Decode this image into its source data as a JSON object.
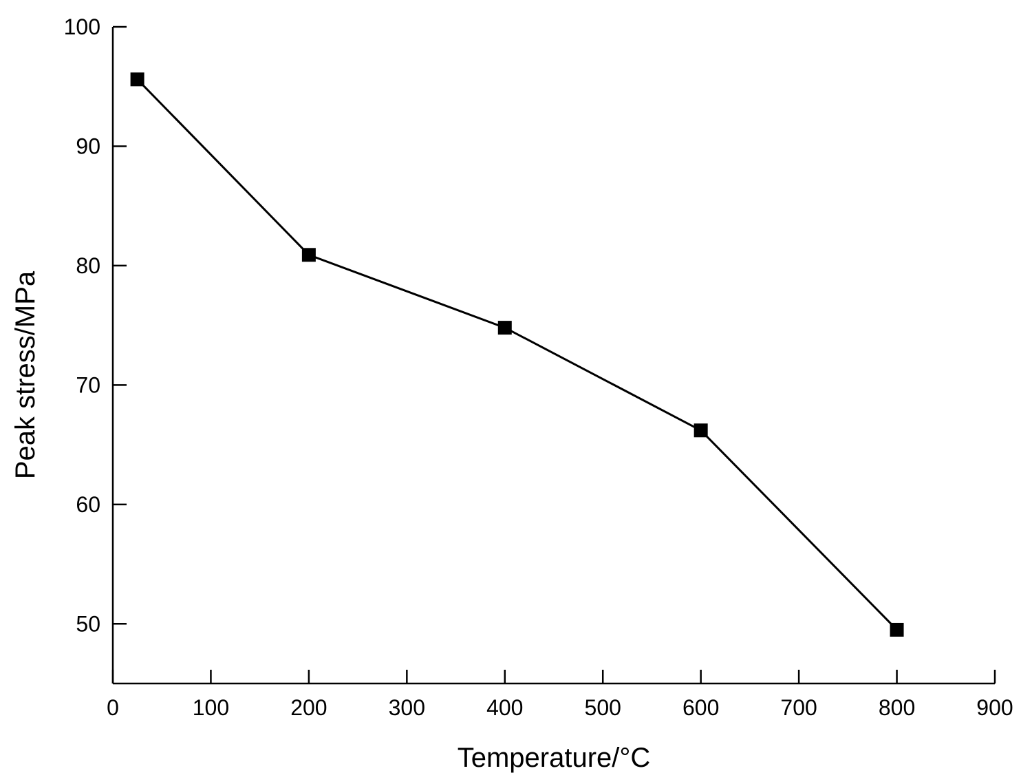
{
  "chart_data": {
    "type": "line",
    "title": "",
    "xlabel": "Temperature/°C",
    "ylabel": "Peak stress/MPa",
    "xlim": [
      0,
      900
    ],
    "ylim": [
      45,
      100
    ],
    "xticks": [
      0,
      100,
      200,
      300,
      400,
      500,
      600,
      700,
      800,
      900
    ],
    "yticks": [
      50,
      60,
      70,
      80,
      90,
      100
    ],
    "grid": false,
    "legend": "none",
    "series": [
      {
        "marker": "square",
        "color": "#000000",
        "x": [
          25,
          200,
          400,
          600,
          800
        ],
        "y": [
          95.6,
          80.9,
          74.8,
          66.2,
          49.5
        ]
      }
    ]
  }
}
